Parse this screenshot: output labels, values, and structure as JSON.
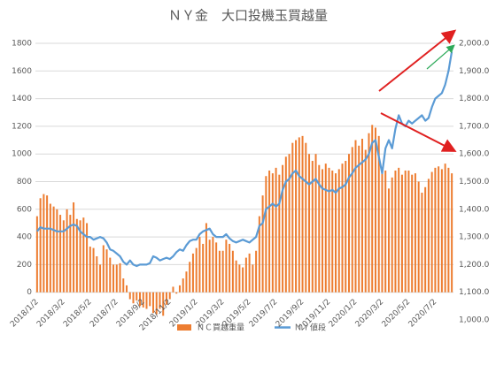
{
  "chart_data": {
    "type": "bar-line",
    "title": "ＮＹ金　大口投機玉買越量",
    "categories": [
      "2018/1/2",
      null,
      null,
      null,
      null,
      null,
      null,
      null,
      "2018/3/2",
      null,
      null,
      null,
      null,
      null,
      null,
      null,
      "2018/5/2",
      null,
      null,
      null,
      null,
      null,
      null,
      null,
      "2018/7/2",
      null,
      null,
      null,
      null,
      null,
      null,
      null,
      "2018/9/2",
      null,
      null,
      null,
      null,
      null,
      null,
      null,
      "2018/11/2",
      null,
      null,
      null,
      null,
      null,
      null,
      null,
      "2019/1/2",
      null,
      null,
      null,
      null,
      null,
      null,
      null,
      "2019/3/2",
      null,
      null,
      null,
      null,
      null,
      null,
      null,
      "2019/5/2",
      null,
      null,
      null,
      null,
      null,
      null,
      null,
      "2019/7/2",
      null,
      null,
      null,
      null,
      null,
      null,
      null,
      "2019/9/2",
      null,
      null,
      null,
      null,
      null,
      null,
      null,
      "2019/11/2",
      null,
      null,
      null,
      null,
      null,
      null,
      null,
      "2020/1/2",
      null,
      null,
      null,
      null,
      null,
      null,
      null,
      "2020/3/2",
      null,
      null,
      null,
      null,
      null,
      null,
      null,
      "2020/5/2",
      null,
      null,
      null,
      null,
      null,
      null,
      null,
      "2020/7/2",
      null,
      null,
      null,
      null,
      null
    ],
    "series": [
      {
        "name": "ＮＣ買越重量",
        "type": "bar",
        "color": "#ed7d31",
        "values": [
          550,
          680,
          710,
          700,
          640,
          620,
          600,
          560,
          520,
          600,
          560,
          650,
          530,
          520,
          540,
          500,
          330,
          320,
          260,
          200,
          340,
          310,
          250,
          200,
          200,
          210,
          100,
          50,
          -50,
          -80,
          -60,
          -100,
          -110,
          -120,
          -100,
          -150,
          -160,
          -120,
          -170,
          -90,
          -50,
          40,
          -10,
          50,
          100,
          150,
          220,
          280,
          320,
          400,
          350,
          500,
          380,
          400,
          360,
          300,
          300,
          380,
          350,
          300,
          230,
          200,
          180,
          250,
          280,
          200,
          300,
          550,
          700,
          840,
          880,
          860,
          900,
          850,
          920,
          980,
          1000,
          1080,
          1100,
          1120,
          1130,
          1080,
          1000,
          950,
          1000,
          920,
          890,
          930,
          900,
          880,
          860,
          890,
          930,
          950,
          1000,
          1050,
          1100,
          1060,
          1110,
          1030,
          1150,
          1210,
          1190,
          1130,
          900,
          880,
          750,
          830,
          880,
          900,
          850,
          880,
          880,
          850,
          860,
          800,
          720,
          760,
          820,
          870,
          900,
          910,
          890,
          930,
          900,
          860
        ]
      },
      {
        "name": "ＮＹ値段",
        "type": "line",
        "axis": "y2",
        "color": "#5b9bd5",
        "values": [
          1320,
          1335,
          1330,
          1330,
          1330,
          1325,
          1320,
          1320,
          1320,
          1330,
          1340,
          1345,
          1340,
          1320,
          1310,
          1300,
          1300,
          1290,
          1295,
          1300,
          1295,
          1280,
          1255,
          1250,
          1240,
          1230,
          1210,
          1200,
          1215,
          1200,
          1195,
          1200,
          1200,
          1200,
          1205,
          1230,
          1225,
          1215,
          1220,
          1225,
          1220,
          1230,
          1245,
          1255,
          1250,
          1270,
          1285,
          1290,
          1290,
          1310,
          1320,
          1325,
          1330,
          1310,
          1300,
          1300,
          1300,
          1310,
          1295,
          1285,
          1280,
          1285,
          1290,
          1285,
          1280,
          1290,
          1300,
          1340,
          1350,
          1400,
          1410,
          1420,
          1410,
          1420,
          1470,
          1500,
          1510,
          1530,
          1540,
          1520,
          1510,
          1500,
          1490,
          1500,
          1510,
          1490,
          1475,
          1470,
          1465,
          1470,
          1460,
          1475,
          1480,
          1490,
          1515,
          1530,
          1550,
          1560,
          1570,
          1580,
          1600,
          1640,
          1650,
          1590,
          1530,
          1620,
          1650,
          1620,
          1690,
          1740,
          1710,
          1700,
          1720,
          1710,
          1720,
          1730,
          1740,
          1720,
          1730,
          1770,
          1800,
          1810,
          1820,
          1850,
          1900,
          1970
        ]
      }
    ],
    "ylim": [
      -200,
      1800
    ],
    "yticks": [
      0,
      200,
      400,
      600,
      800,
      1000,
      1200,
      1400,
      1600,
      1800
    ],
    "y2lim": [
      1000,
      2000
    ],
    "y2ticks": [
      {
        "value": 1000,
        "label": "1,000.0"
      },
      {
        "value": 1100,
        "label": "1,100.0"
      },
      {
        "value": 1200,
        "label": "1,200.0"
      },
      {
        "value": 1300,
        "label": "1,300.0"
      },
      {
        "value": 1400,
        "label": "1,400.0"
      },
      {
        "value": 1500,
        "label": "1,500.0"
      },
      {
        "value": 1600,
        "label": "1,600.0"
      },
      {
        "value": 1700,
        "label": "1,700.0"
      },
      {
        "value": 1800,
        "label": "1,800.0"
      },
      {
        "value": 1900,
        "label": "1,900.0"
      },
      {
        "value": 2000,
        "label": "2,000.0"
      }
    ],
    "grid": true
  }
}
